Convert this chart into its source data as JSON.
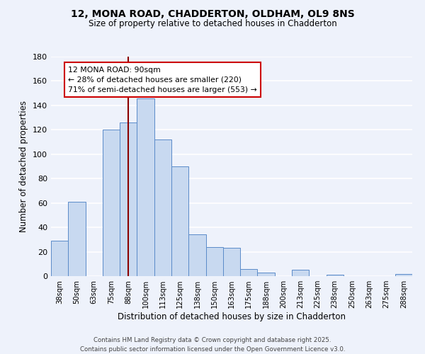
{
  "title_line1": "12, MONA ROAD, CHADDERTON, OLDHAM, OL9 8NS",
  "title_line2": "Size of property relative to detached houses in Chadderton",
  "xlabel": "Distribution of detached houses by size in Chadderton",
  "ylabel": "Number of detached properties",
  "bar_labels": [
    "38sqm",
    "50sqm",
    "63sqm",
    "75sqm",
    "88sqm",
    "100sqm",
    "113sqm",
    "125sqm",
    "138sqm",
    "150sqm",
    "163sqm",
    "175sqm",
    "188sqm",
    "200sqm",
    "213sqm",
    "225sqm",
    "238sqm",
    "250sqm",
    "263sqm",
    "275sqm",
    "288sqm"
  ],
  "bar_values": [
    29,
    61,
    0,
    120,
    126,
    146,
    112,
    90,
    34,
    24,
    23,
    6,
    3,
    0,
    5,
    0,
    1,
    0,
    0,
    0,
    2
  ],
  "bar_color": "#c8d9f0",
  "bar_edge_color": "#5b8bc9",
  "ylim": [
    0,
    180
  ],
  "yticks": [
    0,
    20,
    40,
    60,
    80,
    100,
    120,
    140,
    160,
    180
  ],
  "vline_x_index": 4,
  "vline_color": "#8b0000",
  "annotation_title": "12 MONA ROAD: 90sqm",
  "annotation_line1": "← 28% of detached houses are smaller (220)",
  "annotation_line2": "71% of semi-detached houses are larger (553) →",
  "footer_line1": "Contains HM Land Registry data © Crown copyright and database right 2025.",
  "footer_line2": "Contains public sector information licensed under the Open Government Licence v3.0.",
  "background_color": "#eef2fb",
  "grid_color": "#ffffff"
}
